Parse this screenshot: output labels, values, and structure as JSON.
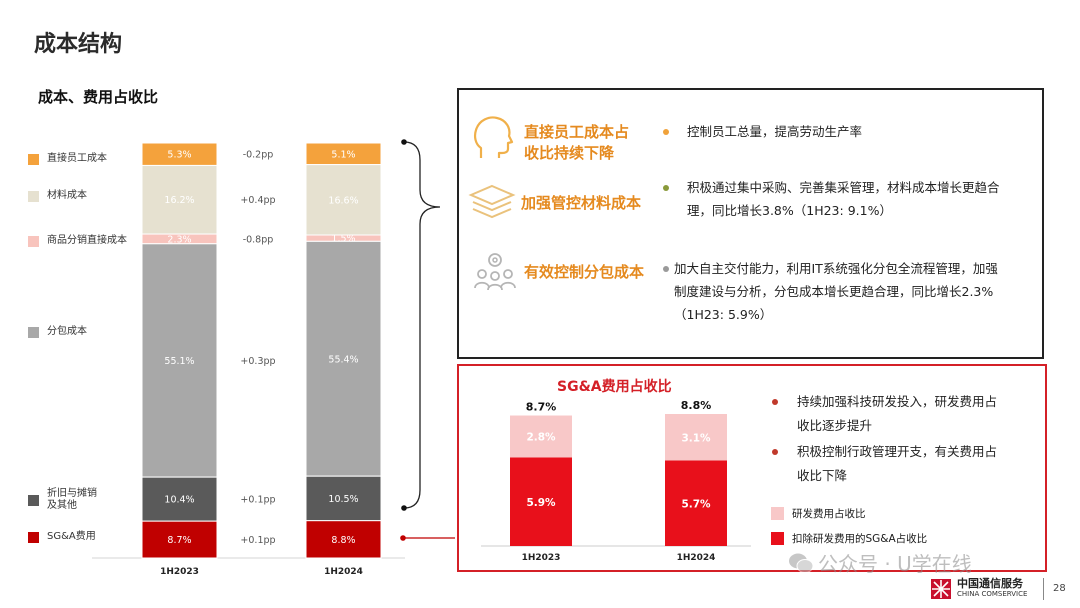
{
  "page": {
    "title": "成本结构",
    "subtitle": "成本、费用占收比",
    "page_number": "28",
    "watermark": "公众号 · U学在线",
    "logo_cn": "中国通信服务",
    "logo_en": "CHINA COMSERVICE"
  },
  "chart_data": [
    {
      "type": "bar",
      "stacked": true,
      "title": "成本、费用占收比",
      "categories": [
        "1H2023",
        "1H2024"
      ],
      "series": [
        {
          "name": "直接员工成本",
          "values": [
            5.3,
            5.1
          ],
          "labels": [
            "5.3%",
            "5.1%"
          ],
          "change": "-0.2pp",
          "color": "#f4a23c"
        },
        {
          "name": "材料成本",
          "values": [
            16.2,
            16.6
          ],
          "labels": [
            "16.2%",
            "16.6%"
          ],
          "change": "+0.4pp",
          "color": "#e6e1d0"
        },
        {
          "name": "商品分销直接成本",
          "values": [
            2.3,
            1.5
          ],
          "labels": [
            "2.3%",
            "1.5%"
          ],
          "change": "-0.8pp",
          "color": "#f8c4bd"
        },
        {
          "name": "分包成本",
          "values": [
            55.1,
            55.4
          ],
          "labels": [
            "55.1%",
            "55.4%"
          ],
          "change": "+0.3pp",
          "color": "#a8a8a8"
        },
        {
          "name": "折旧与摊销\n及其他",
          "values": [
            10.4,
            10.5
          ],
          "labels": [
            "10.4%",
            "10.5%"
          ],
          "change": "+0.1pp",
          "color": "#5a5a5a"
        },
        {
          "name": "SG&A费用",
          "values": [
            8.7,
            8.8
          ],
          "labels": [
            "8.7%",
            "8.8%"
          ],
          "change": "+0.1pp",
          "color": "#c00000"
        }
      ]
    },
    {
      "type": "bar",
      "stacked": true,
      "title": "SG&A费用占收比",
      "categories": [
        "1H2023",
        "1H2024"
      ],
      "totals": [
        "8.7%",
        "8.8%"
      ],
      "series": [
        {
          "name": "扣除研发费用的SG&A占收比",
          "values": [
            5.9,
            5.7
          ],
          "labels": [
            "5.9%",
            "5.7%"
          ],
          "color": "#e8101b"
        },
        {
          "name": "研发费用占收比",
          "values": [
            2.8,
            3.1
          ],
          "labels": [
            "2.8%",
            "3.1%"
          ],
          "color": "#f8c8c8"
        }
      ]
    }
  ],
  "initiatives": [
    {
      "title": "直接员工成本占\n收比持续下降",
      "icon": "head-icon",
      "bullet": "控制员工总量，提高劳动生产率",
      "dot_color": "#f0a23a"
    },
    {
      "title": "加强管控材料成本",
      "icon": "layers-icon",
      "bullet": "积极通过集中采购、完善集采管理，材料成本增长更趋合\n理，同比增长3.8%（1H23: 9.1%）",
      "dot_color": "#8a9a3a"
    },
    {
      "title": "有效控制分包成本",
      "icon": "team-gear-icon",
      "bullet": "加大自主交付能力，利用IT系统强化分包全流程管理，加强\n制度建设与分析，分包成本增长更趋合理，同比增长2.3%\n（1H23: 5.9%）",
      "dot_color": "#9a9a9a"
    }
  ],
  "sga_bullets": [
    "持续加强科技研发投入，研发费用占\n收比逐步提升",
    "积极控制行政管理开支，有关费用占\n收比下降"
  ],
  "colors": {
    "accent_orange": "#e58a1f",
    "accent_red": "#d42027"
  }
}
